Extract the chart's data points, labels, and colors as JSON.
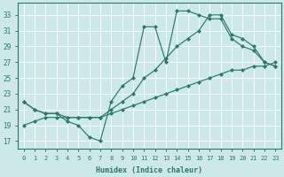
{
  "xlabel": "Humidex (Indice chaleur)",
  "bg_color": "#cce8e8",
  "line_color": "#2a7a6a",
  "xlim": [
    -0.5,
    23.5
  ],
  "ylim": [
    16,
    34.5
  ],
  "xticks": [
    0,
    1,
    2,
    3,
    4,
    5,
    6,
    7,
    8,
    9,
    10,
    11,
    12,
    13,
    14,
    15,
    16,
    17,
    18,
    19,
    20,
    21,
    22,
    23
  ],
  "yticks": [
    17,
    19,
    21,
    23,
    25,
    27,
    29,
    31,
    33
  ],
  "series": [
    {
      "x": [
        0,
        1,
        2,
        3,
        4,
        5,
        6,
        7,
        8,
        9,
        10,
        11,
        12,
        13,
        14,
        15,
        16,
        17,
        18,
        19,
        20,
        21,
        22,
        23
      ],
      "y": [
        22,
        21,
        20.5,
        20.5,
        19.5,
        19,
        17.5,
        17,
        22,
        24,
        25,
        31.5,
        31.5,
        27,
        33.5,
        33.5,
        33,
        32.5,
        32.5,
        30,
        29,
        28.5,
        27,
        26.5
      ]
    },
    {
      "x": [
        0,
        1,
        2,
        3,
        4,
        5,
        6,
        7,
        8,
        9,
        10,
        11,
        12,
        13,
        14,
        15,
        16,
        17,
        18,
        19,
        20,
        21,
        22,
        23
      ],
      "y": [
        22,
        21,
        20.5,
        20.5,
        20,
        20,
        20,
        20,
        21,
        22,
        23,
        25,
        26,
        27.5,
        29,
        30,
        31,
        33,
        33,
        30.5,
        30,
        29,
        27,
        26.5
      ]
    },
    {
      "x": [
        0,
        1,
        2,
        3,
        4,
        5,
        6,
        7,
        8,
        9,
        10,
        11,
        12,
        13,
        14,
        15,
        16,
        17,
        18,
        19,
        20,
        21,
        22,
        23
      ],
      "y": [
        19,
        19.5,
        20,
        20,
        20,
        20,
        20,
        20,
        20.5,
        21,
        21.5,
        22,
        22.5,
        23,
        23.5,
        24,
        24.5,
        25,
        25.5,
        26,
        26,
        26.5,
        26.5,
        27
      ]
    }
  ]
}
